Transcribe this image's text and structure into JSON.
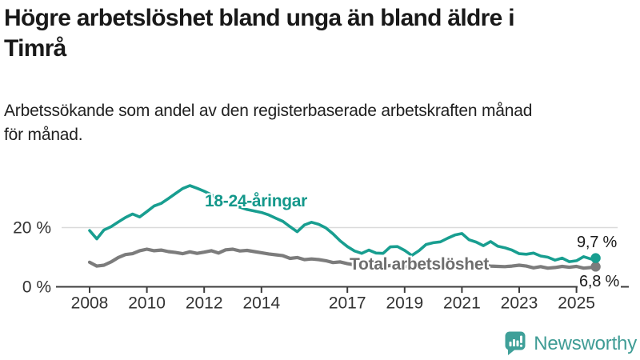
{
  "header": {
    "title_lines": [
      "Högre arbetslöshet bland unga än bland äldre i",
      "Timrå"
    ],
    "subtitle_lines": [
      "Arbetssökande som andel av den registerbaserade arbetskraften månad",
      "för månad."
    ]
  },
  "chart_data": {
    "type": "line",
    "unit": "%",
    "title": "Högre arbetslöshet bland unga än bland äldre i Timrå",
    "subtitle": "Arbetssökande som andel av den registerbaserade arbetskraften månad för månad.",
    "xlim": [
      2008,
      2025.75
    ],
    "ylim": [
      0,
      38
    ],
    "grid": "single horizontal gridline at 20 %",
    "legend_position": "inline labels on lines",
    "xticks": [
      2008,
      2010,
      2012,
      2014,
      2017,
      2019,
      2021,
      2023,
      2025
    ],
    "yticks": [
      {
        "v": 0,
        "label": "0 %"
      },
      {
        "v": 20,
        "label": "20 %"
      }
    ],
    "x_years": [
      2008.0,
      2008.25,
      2008.5,
      2008.75,
      2009.0,
      2009.25,
      2009.5,
      2009.75,
      2010.0,
      2010.25,
      2010.5,
      2010.75,
      2011.0,
      2011.25,
      2011.5,
      2011.75,
      2012.0,
      2012.25,
      2012.5,
      2012.75,
      2013.0,
      2013.25,
      2013.5,
      2013.75,
      2014.0,
      2014.25,
      2014.5,
      2014.75,
      2015.0,
      2015.25,
      2015.5,
      2015.75,
      2016.0,
      2016.25,
      2016.5,
      2016.75,
      2017.0,
      2017.25,
      2017.5,
      2017.75,
      2018.0,
      2018.25,
      2018.5,
      2018.75,
      2019.0,
      2019.25,
      2019.5,
      2019.75,
      2020.0,
      2020.25,
      2020.5,
      2020.75,
      2021.0,
      2021.25,
      2021.5,
      2021.75,
      2022.0,
      2022.25,
      2022.5,
      2022.75,
      2023.0,
      2023.25,
      2023.5,
      2023.75,
      2024.0,
      2024.25,
      2024.5,
      2024.75,
      2025.0,
      2025.25,
      2025.5,
      2025.67
    ],
    "series": [
      {
        "name": "18-24-åringar",
        "color": "#189E90",
        "end_label": "9,7 %",
        "end_value": 9.7,
        "values": [
          19.0,
          16.2,
          19.2,
          20.3,
          21.9,
          23.4,
          24.6,
          23.6,
          25.4,
          27.3,
          28.2,
          29.8,
          31.5,
          33.2,
          34.2,
          33.3,
          32.3,
          31.1,
          29.7,
          28.5,
          27.7,
          26.9,
          26.1,
          25.6,
          25.1,
          24.3,
          23.2,
          22.1,
          20.3,
          18.6,
          20.9,
          21.8,
          21.1,
          19.9,
          17.9,
          15.5,
          13.6,
          12.1,
          11.3,
          12.4,
          11.4,
          11.3,
          13.5,
          13.6,
          12.3,
          10.6,
          12.2,
          14.3,
          14.9,
          15.2,
          16.4,
          17.5,
          18.0,
          15.9,
          15.1,
          13.9,
          15.3,
          13.7,
          13.2,
          12.4,
          11.2,
          11.0,
          11.4,
          10.4,
          10.0,
          9.0,
          9.7,
          8.5,
          8.8,
          10.2,
          9.4,
          9.7
        ]
      },
      {
        "name": "Total arbetslöshet",
        "color": "#7C7C7C",
        "end_label": "6,8 %",
        "end_value": 6.8,
        "values": [
          8.3,
          7.0,
          7.3,
          8.4,
          9.9,
          10.9,
          11.2,
          12.2,
          12.7,
          12.2,
          12.4,
          11.9,
          11.6,
          11.2,
          11.8,
          11.3,
          11.7,
          12.2,
          11.4,
          12.5,
          12.7,
          12.1,
          12.3,
          11.9,
          11.5,
          11.1,
          10.8,
          10.5,
          9.6,
          9.9,
          9.2,
          9.4,
          9.2,
          8.8,
          8.2,
          8.4,
          7.8,
          7.4,
          7.2,
          7.0,
          7.1,
          6.9,
          7.2,
          7.0,
          6.8,
          7.0,
          7.1,
          7.3,
          7.6,
          8.3,
          8.5,
          8.2,
          8.0,
          7.7,
          7.4,
          7.2,
          7.0,
          6.9,
          6.8,
          7.0,
          7.3,
          7.0,
          6.4,
          6.8,
          6.3,
          6.5,
          6.9,
          6.6,
          6.9,
          6.3,
          6.5,
          6.8
        ]
      }
    ]
  },
  "footer": {
    "brand": "Newsworthy",
    "brand_color": "#3F9C95",
    "logo_icon": "bar-chart-speech-bubble-icon"
  }
}
